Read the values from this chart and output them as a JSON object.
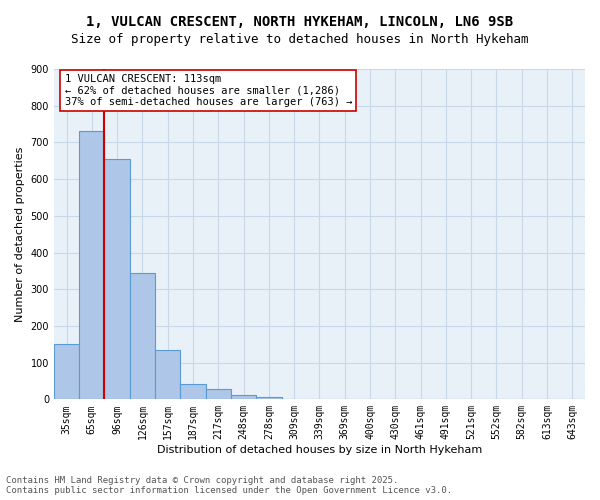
{
  "title_line1": "1, VULCAN CRESCENT, NORTH HYKEHAM, LINCOLN, LN6 9SB",
  "title_line2": "Size of property relative to detached houses in North Hykeham",
  "bar_labels": [
    "35sqm",
    "65sqm",
    "96sqm",
    "126sqm",
    "157sqm",
    "187sqm",
    "217sqm",
    "248sqm",
    "278sqm",
    "309sqm",
    "339sqm",
    "369sqm",
    "400sqm",
    "430sqm",
    "461sqm",
    "491sqm",
    "521sqm",
    "552sqm",
    "582sqm",
    "613sqm",
    "643sqm"
  ],
  "bar_values": [
    150,
    730,
    655,
    345,
    135,
    43,
    28,
    12,
    5,
    0,
    0,
    0,
    0,
    0,
    0,
    0,
    0,
    0,
    0,
    0,
    0
  ],
  "bar_color": "#aec6e8",
  "bar_edge_color": "#5b9bd5",
  "bar_linewidth": 0.8,
  "grid_color": "#c8d8e8",
  "bg_color": "#e8f0f8",
  "ylabel": "Number of detached properties",
  "xlabel": "Distribution of detached houses by size in North Hykeham",
  "ylim": [
    0,
    900
  ],
  "yticks": [
    0,
    100,
    200,
    300,
    400,
    500,
    600,
    700,
    800,
    900
  ],
  "property_line_x": 2,
  "property_line_color": "#cc0000",
  "annotation_text": "1 VULCAN CRESCENT: 113sqm\n← 62% of detached houses are smaller (1,286)\n37% of semi-detached houses are larger (763) →",
  "footer_line1": "Contains HM Land Registry data © Crown copyright and database right 2025.",
  "footer_line2": "Contains public sector information licensed under the Open Government Licence v3.0.",
  "title_fontsize": 10,
  "axis_fontsize": 8,
  "tick_fontsize": 7,
  "annotation_fontsize": 7.5,
  "footer_fontsize": 6.5
}
